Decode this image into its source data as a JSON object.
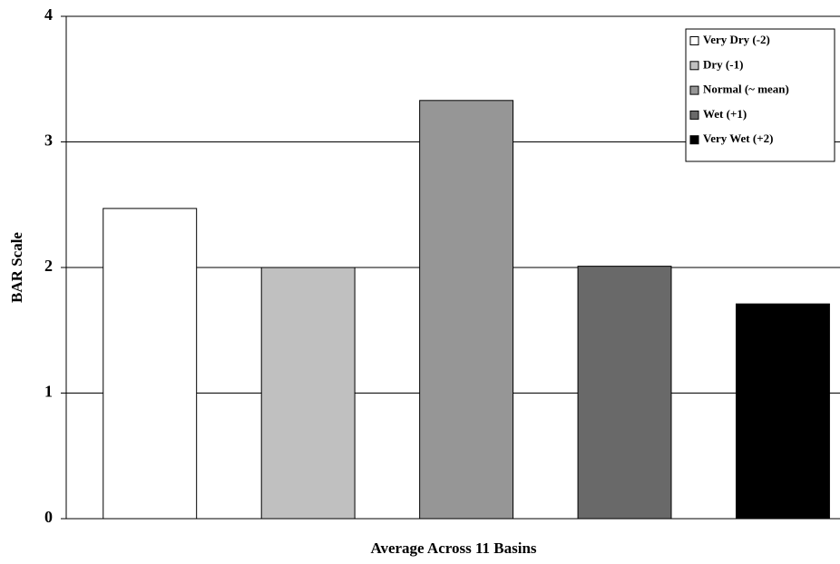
{
  "chart_data": {
    "type": "bar",
    "x_label": "Average Across 11 Basins",
    "y_label": "BAR Scale",
    "categories": [
      null
    ],
    "series": [
      {
        "name": "Very Dry (-2)",
        "color": "#ffffff",
        "values": [
          2.47
        ]
      },
      {
        "name": "Dry (-1)",
        "color": "#c0c0c0",
        "values": [
          2.0
        ]
      },
      {
        "name": "Normal (~ mean)",
        "color": "#969696",
        "values": [
          3.33
        ]
      },
      {
        "name": "Wet (+1)",
        "color": "#696969",
        "values": [
          2.01
        ]
      },
      {
        "name": "Very Wet (+2)",
        "color": "#000000",
        "values": [
          1.71
        ]
      }
    ],
    "ylim": [
      0,
      4
    ],
    "yticks": [
      0,
      1,
      2,
      3,
      4
    ],
    "grid": true,
    "legend": "top-right"
  }
}
